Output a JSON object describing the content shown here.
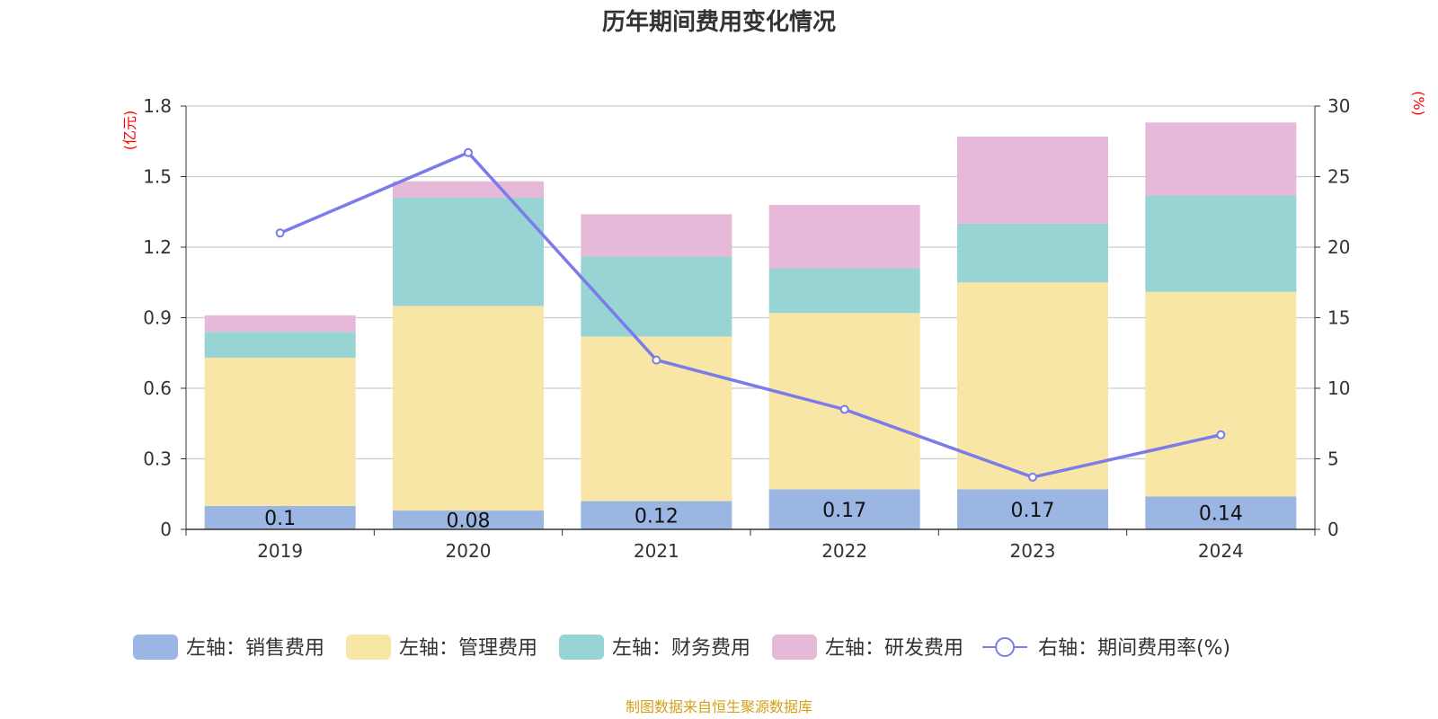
{
  "chart_data": {
    "type": "bar",
    "title": "历年期间费用变化情况",
    "categories": [
      "2019",
      "2020",
      "2021",
      "2022",
      "2023",
      "2024"
    ],
    "left_axis": {
      "unit": "(亿元)",
      "ylim": [
        0,
        1.8
      ],
      "ticks": [
        "0",
        "0.3",
        "0.6",
        "0.9",
        "1.2",
        "1.5",
        "1.8"
      ]
    },
    "right_axis": {
      "unit": "(%)",
      "ylim": [
        0,
        30
      ],
      "ticks": [
        "0",
        "5",
        "10",
        "15",
        "20",
        "25",
        "30"
      ]
    },
    "series": [
      {
        "name": "左轴：销售费用",
        "type": "bar",
        "stack": true,
        "color": "#9bb6e2",
        "values": [
          0.1,
          0.08,
          0.12,
          0.17,
          0.17,
          0.14
        ],
        "labels": [
          "0.1",
          "0.08",
          "0.12",
          "0.17",
          "0.17",
          "0.14"
        ]
      },
      {
        "name": "左轴：管理费用",
        "type": "bar",
        "stack": true,
        "color": "#f7e6a6",
        "values": [
          0.63,
          0.87,
          0.7,
          0.75,
          0.88,
          0.87
        ]
      },
      {
        "name": "左轴：财务费用",
        "type": "bar",
        "stack": true,
        "color": "#98d4d4",
        "values": [
          0.11,
          0.46,
          0.34,
          0.19,
          0.25,
          0.41
        ]
      },
      {
        "name": "左轴：研发费用",
        "type": "bar",
        "stack": true,
        "color": "#e7b9d8",
        "values": [
          0.07,
          0.07,
          0.18,
          0.27,
          0.37,
          0.31
        ]
      },
      {
        "name": "右轴：期间费用率(%)",
        "type": "line",
        "axis": "right",
        "color": "#7b7bea",
        "values": [
          21.0,
          26.7,
          12.0,
          8.5,
          3.7,
          6.7
        ]
      }
    ],
    "grid": true,
    "legend_position": "bottom"
  },
  "colors": {
    "unit_label": "#ff0000",
    "source": "#d4a017",
    "grid": "#cccccc",
    "axis": "#333333"
  },
  "source_text": "制图数据来自恒生聚源数据库"
}
